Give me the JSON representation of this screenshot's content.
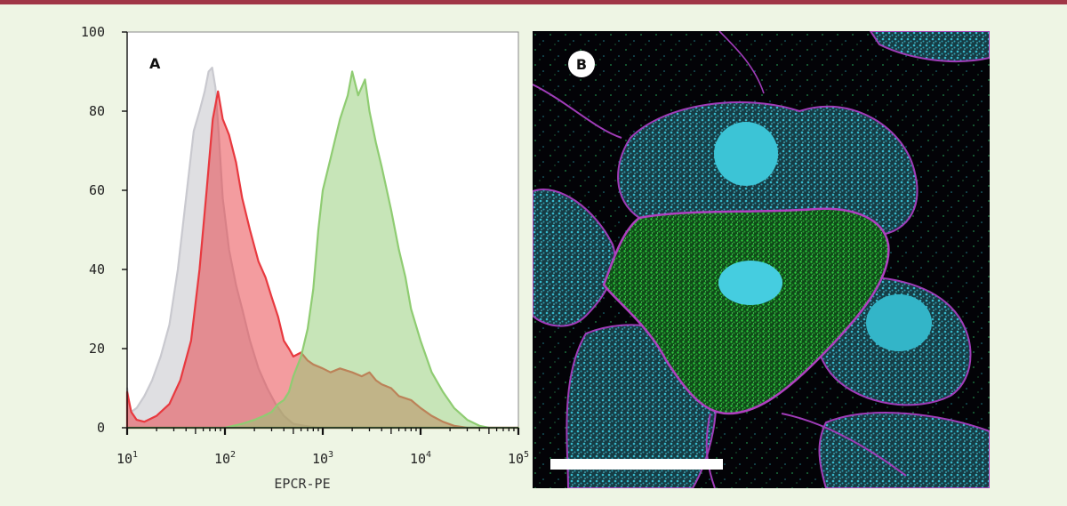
{
  "panels": {
    "a_label": "A",
    "b_label": "B"
  },
  "chart_data": {
    "type": "area",
    "xlabel": "EPCR-PE",
    "ylabel": "",
    "x_scale": "log",
    "xlim": [
      10,
      100000
    ],
    "ylim": [
      0,
      100
    ],
    "grid": false,
    "x_ticks": [
      {
        "base": "10",
        "exp": "1"
      },
      {
        "base": "10",
        "exp": "2"
      },
      {
        "base": "10",
        "exp": "3"
      },
      {
        "base": "10",
        "exp": "4"
      },
      {
        "base": "10",
        "exp": "5"
      }
    ],
    "y_ticks": [
      "0",
      "20",
      "40",
      "60",
      "80",
      "100"
    ],
    "series": [
      {
        "color": "#c9c9cf",
        "x": [
          10,
          10.5,
          11,
          12.5,
          15,
          18,
          22,
          27,
          33,
          40,
          48,
          55,
          62,
          68,
          74,
          80,
          86,
          95,
          110,
          130,
          150,
          180,
          220,
          270,
          330,
          400,
          500,
          650,
          900,
          100000
        ],
        "y": [
          10,
          6,
          4,
          5,
          8,
          12,
          18,
          26,
          40,
          58,
          75,
          80,
          85,
          90,
          91,
          86,
          75,
          58,
          45,
          36,
          30,
          22,
          15,
          10,
          6,
          3,
          1,
          0.5,
          0,
          0
        ]
      },
      {
        "color": "#e8393f",
        "x": [
          10,
          11,
          12.5,
          15,
          20,
          27,
          35,
          45,
          55,
          65,
          75,
          85,
          95,
          110,
          130,
          150,
          180,
          220,
          260,
          300,
          350,
          400,
          450,
          500,
          600,
          700,
          800,
          1000,
          1200,
          1500,
          2000,
          2500,
          3000,
          3500,
          4000,
          5000,
          6000,
          8000,
          10000,
          13000,
          17000,
          22000,
          30000,
          100000
        ],
        "y": [
          9,
          4,
          2,
          1.5,
          3,
          6,
          12,
          22,
          40,
          60,
          78,
          85,
          78,
          74,
          67,
          58,
          50,
          42,
          38,
          33,
          28,
          22,
          20,
          18,
          19,
          17,
          16,
          15,
          14,
          15,
          14,
          13,
          14,
          12,
          11,
          10,
          8,
          7,
          5,
          3,
          1.5,
          0.5,
          0,
          0
        ]
      },
      {
        "color": "#8fcc72",
        "x": [
          10,
          100,
          150,
          200,
          250,
          300,
          350,
          400,
          450,
          500,
          600,
          700,
          800,
          900,
          1000,
          1200,
          1500,
          1800,
          2000,
          2300,
          2700,
          3000,
          3500,
          4000,
          5000,
          6000,
          7000,
          8000,
          10000,
          13000,
          17000,
          22000,
          30000,
          40000,
          50000,
          100000
        ],
        "y": [
          0,
          0,
          1,
          2,
          3,
          4,
          6,
          7,
          9,
          13,
          18,
          25,
          35,
          50,
          60,
          68,
          78,
          84,
          90,
          84,
          88,
          80,
          72,
          66,
          55,
          45,
          38,
          30,
          22,
          14,
          9,
          5,
          2,
          0.5,
          0,
          0
        ]
      }
    ]
  },
  "micrograph": {
    "scale_bar": true
  }
}
